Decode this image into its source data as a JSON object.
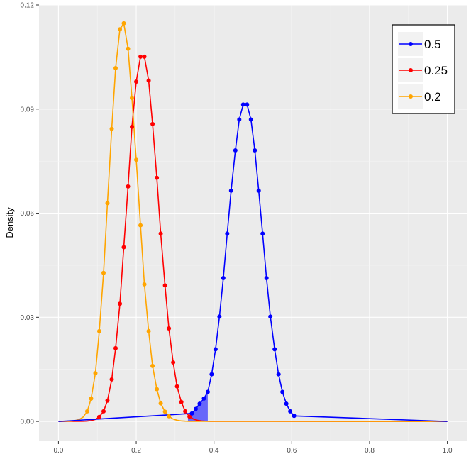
{
  "chart_data": {
    "type": "line",
    "title": "",
    "xlabel": "",
    "ylabel": "Density",
    "xlim": [
      -0.05,
      1.05
    ],
    "ylim": [
      -0.0057,
      0.12
    ],
    "x_ticks": [
      0.0,
      0.2,
      0.4,
      0.6,
      0.8,
      1.0
    ],
    "x_tick_labels": [
      "0.0",
      "0.2",
      "0.4",
      "0.6",
      "0.8",
      "1.0"
    ],
    "y_ticks": [
      0.0,
      0.03,
      0.06,
      0.09,
      0.12
    ],
    "y_tick_labels": [
      "0.00",
      "0.03",
      "0.06",
      "0.09",
      "0.12"
    ],
    "grid": true,
    "background": "#ebebeb",
    "legend_position": "top-right",
    "shaded_region": {
      "series": "0.5",
      "x_from": 0.333,
      "x_to": 0.384,
      "color": "#3b3bff"
    },
    "series": [
      {
        "name": "0.5",
        "color": "#0000ff",
        "x": [
          0.0,
          0.333,
          0.343,
          0.353,
          0.363,
          0.374,
          0.384,
          0.394,
          0.404,
          0.414,
          0.424,
          0.434,
          0.444,
          0.455,
          0.465,
          0.475,
          0.485,
          0.495,
          0.505,
          0.515,
          0.525,
          0.535,
          0.545,
          0.556,
          0.566,
          0.576,
          0.586,
          0.596,
          0.606,
          0.616,
          0.626,
          0.636,
          0.646,
          0.657,
          0.667,
          1.0
        ],
        "y": [
          0.0,
          0.0012,
          0.0022,
          0.0037,
          0.0061,
          0.0093,
          0.0136,
          0.0207,
          0.0301,
          0.0412,
          0.0541,
          0.0665,
          0.0781,
          0.0872,
          0.0912,
          0.0952,
          0.0952,
          0.0912,
          0.0872,
          0.0781,
          0.0665,
          0.0541,
          0.0412,
          0.0301,
          0.0207,
          0.0136,
          0.0093,
          0.0061,
          0.0037,
          0.0022,
          0.0012,
          0.0006,
          0.0003,
          0.0001,
          0.0,
          0.0
        ],
        "points": [
          [
            0.343,
            0.0023
          ],
          [
            0.353,
            0.0036
          ],
          [
            0.363,
            0.0051
          ],
          [
            0.374,
            0.0066
          ],
          [
            0.384,
            0.0085
          ],
          [
            0.394,
            0.0136
          ],
          [
            0.404,
            0.0208
          ],
          [
            0.414,
            0.0302
          ],
          [
            0.424,
            0.0413
          ],
          [
            0.434,
            0.0541
          ],
          [
            0.444,
            0.0665
          ],
          [
            0.455,
            0.0781
          ],
          [
            0.465,
            0.087
          ],
          [
            0.475,
            0.0913
          ],
          [
            0.485,
            0.0913
          ],
          [
            0.495,
            0.087
          ],
          [
            0.505,
            0.0781
          ],
          [
            0.515,
            0.0665
          ],
          [
            0.525,
            0.0541
          ],
          [
            0.535,
            0.0413
          ],
          [
            0.545,
            0.0302
          ],
          [
            0.556,
            0.0208
          ],
          [
            0.566,
            0.0136
          ],
          [
            0.576,
            0.0085
          ],
          [
            0.586,
            0.0051
          ],
          [
            0.596,
            0.0029
          ],
          [
            0.606,
            0.0016
          ]
        ]
      },
      {
        "name": "0.25",
        "color": "#ff0000",
        "points": [
          [
            0.105,
            0.0013
          ],
          [
            0.116,
            0.0029
          ],
          [
            0.126,
            0.006
          ],
          [
            0.137,
            0.0121
          ],
          [
            0.147,
            0.0211
          ],
          [
            0.158,
            0.0339
          ],
          [
            0.168,
            0.0502
          ],
          [
            0.179,
            0.0677
          ],
          [
            0.189,
            0.0849
          ],
          [
            0.2,
            0.0979
          ],
          [
            0.211,
            0.1051
          ],
          [
            0.221,
            0.1051
          ],
          [
            0.232,
            0.0982
          ],
          [
            0.242,
            0.0857
          ],
          [
            0.253,
            0.0702
          ],
          [
            0.263,
            0.0541
          ],
          [
            0.274,
            0.0392
          ],
          [
            0.284,
            0.0268
          ],
          [
            0.295,
            0.017
          ],
          [
            0.305,
            0.0101
          ],
          [
            0.316,
            0.0056
          ],
          [
            0.326,
            0.0029
          ],
          [
            0.337,
            0.0014
          ]
        ]
      },
      {
        "name": "0.2",
        "color": "#ffa500",
        "points": [
          [
            0.074,
            0.0029
          ],
          [
            0.084,
            0.0066
          ],
          [
            0.095,
            0.0139
          ],
          [
            0.105,
            0.026
          ],
          [
            0.116,
            0.0428
          ],
          [
            0.126,
            0.0629
          ],
          [
            0.137,
            0.0843
          ],
          [
            0.147,
            0.1018
          ],
          [
            0.158,
            0.113
          ],
          [
            0.168,
            0.1147
          ],
          [
            0.179,
            0.1074
          ],
          [
            0.189,
            0.0932
          ],
          [
            0.2,
            0.0754
          ],
          [
            0.211,
            0.0565
          ],
          [
            0.221,
            0.0395
          ],
          [
            0.232,
            0.026
          ],
          [
            0.242,
            0.016
          ],
          [
            0.253,
            0.0093
          ],
          [
            0.263,
            0.0052
          ],
          [
            0.274,
            0.0028
          ],
          [
            0.284,
            0.0015
          ]
        ]
      }
    ]
  }
}
